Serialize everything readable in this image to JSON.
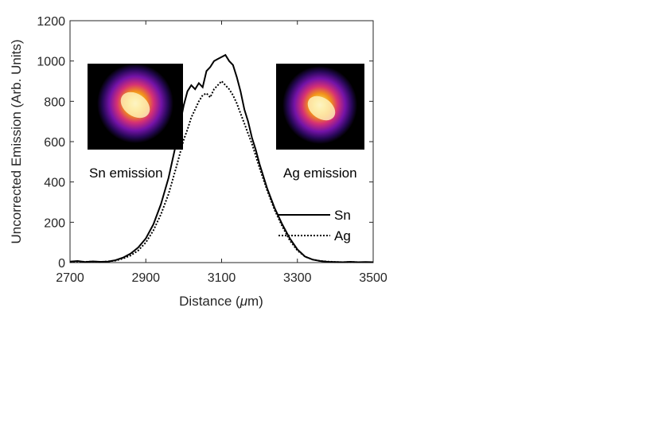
{
  "chart_data": {
    "type": "line",
    "title": "",
    "xlabel_prefix": "Distance (",
    "xlabel_mu": "μ",
    "xlabel_suffix": "m)",
    "ylabel": "Uncorrected Emission (Arb. Units)",
    "xlim": [
      2700,
      3500
    ],
    "ylim": [
      0,
      1200
    ],
    "x_ticks": [
      2700,
      2900,
      3100,
      3300,
      3500
    ],
    "y_ticks": [
      0,
      200,
      400,
      600,
      800,
      1000,
      1200
    ],
    "grid": false,
    "legend_position": "center-right",
    "annotations": [
      {
        "text": "Sn emission",
        "near": "left inset image"
      },
      {
        "text": "Ag emission",
        "near": "right inset image"
      }
    ],
    "inset_images": [
      {
        "name": "sn-emission-image",
        "content": "fire-colormap emission spot"
      },
      {
        "name": "ag-emission-image",
        "content": "fire-colormap emission spot"
      }
    ],
    "series": [
      {
        "name": "Sn",
        "style": "solid",
        "color": "#000000",
        "x": [
          2700,
          2720,
          2740,
          2760,
          2780,
          2800,
          2820,
          2840,
          2860,
          2880,
          2900,
          2920,
          2940,
          2960,
          2980,
          3000,
          3010,
          3020,
          3030,
          3040,
          3050,
          3060,
          3070,
          3080,
          3090,
          3100,
          3110,
          3120,
          3130,
          3140,
          3150,
          3160,
          3170,
          3180,
          3190,
          3200,
          3220,
          3240,
          3260,
          3280,
          3300,
          3320,
          3340,
          3360,
          3380,
          3400,
          3420,
          3440,
          3460,
          3480,
          3500
        ],
        "y": [
          5,
          8,
          3,
          6,
          4,
          5,
          12,
          25,
          45,
          75,
          120,
          190,
          290,
          420,
          590,
          780,
          850,
          880,
          860,
          890,
          870,
          950,
          970,
          1000,
          1010,
          1020,
          1030,
          1000,
          980,
          920,
          850,
          760,
          700,
          620,
          560,
          490,
          370,
          270,
          190,
          120,
          65,
          30,
          15,
          8,
          4,
          3,
          2,
          4,
          2,
          3,
          2
        ]
      },
      {
        "name": "Ag",
        "style": "dotted",
        "color": "#000000",
        "x": [
          2700,
          2720,
          2740,
          2760,
          2780,
          2800,
          2820,
          2840,
          2860,
          2880,
          2900,
          2920,
          2940,
          2960,
          2980,
          3000,
          3010,
          3020,
          3030,
          3040,
          3050,
          3060,
          3070,
          3080,
          3090,
          3100,
          3110,
          3120,
          3130,
          3140,
          3150,
          3160,
          3170,
          3180,
          3190,
          3200,
          3220,
          3240,
          3260,
          3280,
          3300,
          3320,
          3340,
          3360,
          3380,
          3400,
          3420,
          3440,
          3460,
          3480,
          3500
        ],
        "y": [
          3,
          6,
          4,
          5,
          3,
          6,
          10,
          20,
          35,
          60,
          100,
          160,
          240,
          340,
          470,
          610,
          660,
          720,
          760,
          800,
          830,
          840,
          820,
          860,
          880,
          900,
          880,
          860,
          830,
          790,
          740,
          690,
          640,
          590,
          530,
          470,
          360,
          260,
          180,
          110,
          60,
          30,
          15,
          8,
          5,
          3,
          2,
          3,
          2,
          2,
          2
        ]
      }
    ]
  }
}
